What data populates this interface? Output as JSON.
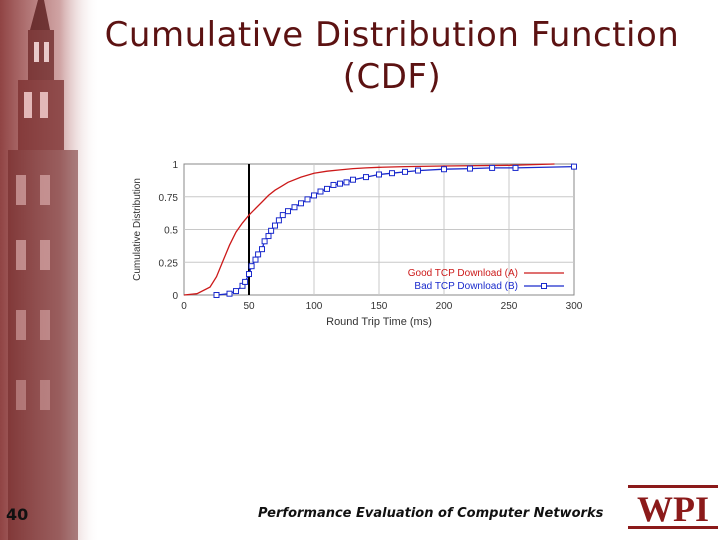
{
  "slide": {
    "title_line1": "Cumulative Distribution Function",
    "title_line2": "(CDF)",
    "number": "40",
    "footer": "Performance Evaluation of Computer Networks",
    "logo_text": "WPI"
  },
  "colors": {
    "title": "#5c1212",
    "series_a": "#cc1a1a",
    "series_b": "#1a2acc",
    "logo": "#8b1a1a"
  },
  "chart_data": {
    "type": "line",
    "xlabel": "Round Trip Time (ms)",
    "ylabel": "Cumulative Distribution",
    "xlim": [
      0,
      300
    ],
    "ylim": [
      0,
      1
    ],
    "xticks": [
      "0",
      "50",
      "100",
      "150",
      "200",
      "250",
      "300"
    ],
    "yticks": [
      "0",
      "0.25",
      "0.5",
      "0.75",
      "1"
    ],
    "grid": true,
    "legend_position": "bottom-right",
    "vline_x": 50,
    "series": [
      {
        "name": "Good TCP Download (A)",
        "color": "#cc1a1a",
        "marker": "none",
        "x": [
          0,
          10,
          20,
          25,
          30,
          35,
          40,
          45,
          50,
          55,
          60,
          65,
          70,
          75,
          80,
          90,
          100,
          110,
          120,
          130,
          140,
          150,
          170,
          200,
          250,
          285
        ],
        "y": [
          0,
          0.01,
          0.06,
          0.14,
          0.26,
          0.38,
          0.48,
          0.55,
          0.61,
          0.66,
          0.71,
          0.76,
          0.8,
          0.83,
          0.86,
          0.9,
          0.93,
          0.945,
          0.955,
          0.965,
          0.97,
          0.975,
          0.98,
          0.985,
          0.99,
          1.0
        ]
      },
      {
        "name": "Bad TCP Download (B)",
        "color": "#1a2acc",
        "marker": "square",
        "x": [
          25,
          35,
          40,
          45,
          47,
          50,
          52,
          55,
          57,
          60,
          62,
          65,
          67,
          70,
          73,
          76,
          80,
          85,
          90,
          95,
          100,
          105,
          110,
          115,
          120,
          125,
          130,
          140,
          150,
          160,
          170,
          180,
          200,
          220,
          237,
          255,
          300
        ],
        "y": [
          0,
          0.01,
          0.03,
          0.07,
          0.1,
          0.16,
          0.22,
          0.27,
          0.31,
          0.35,
          0.41,
          0.45,
          0.49,
          0.53,
          0.57,
          0.61,
          0.64,
          0.67,
          0.7,
          0.73,
          0.76,
          0.79,
          0.81,
          0.84,
          0.85,
          0.86,
          0.88,
          0.9,
          0.92,
          0.93,
          0.94,
          0.95,
          0.96,
          0.965,
          0.97,
          0.97,
          0.98
        ]
      }
    ]
  }
}
